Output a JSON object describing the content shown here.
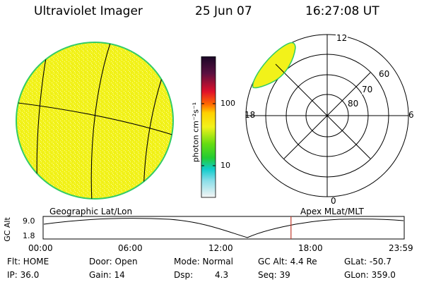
{
  "header": {
    "title": "Ultraviolet Imager",
    "date": "25 Jun 07",
    "time": "16:27:08 UT"
  },
  "colorbar": {
    "unit_label": "photon cm⁻²s⁻¹",
    "tick_100": "100",
    "tick_10": "10"
  },
  "polar": {
    "mlt_top": "12",
    "mlt_right": "6",
    "mlt_bottom": "0",
    "mlt_left": "18",
    "lat_60": "60",
    "lat_70": "70",
    "lat_80": "80"
  },
  "labels": {
    "geo_coords": "Geographic Lat/Lon",
    "apex_coords": "Apex MLat/MLT"
  },
  "altitude": {
    "axis_title": "GC Alt",
    "top_tick": "9.0",
    "bottom_tick": "1.8",
    "current_time_fraction": 0.6865
  },
  "time_axis": {
    "ticks": [
      "00:00",
      "06:00",
      "12:00",
      "18:00",
      "23:59"
    ]
  },
  "status": {
    "flt": "Flt: HOME",
    "ip": "IP: 36.0",
    "door": "Door: Open",
    "gain": "Gain: 14",
    "mode": "Mode: Normal",
    "dsp_label": "Dsp:",
    "dsp_value": "4.3",
    "gc_alt": "GC Alt: 4.4 Re",
    "seq": "Seq: 39",
    "glat": "GLat: -50.7",
    "glon": "GLon: 359.0"
  },
  "colors": {
    "disk_fill": "#f2f21a",
    "disk_edge": "#33cc66",
    "time_marker": "#c0392b"
  }
}
